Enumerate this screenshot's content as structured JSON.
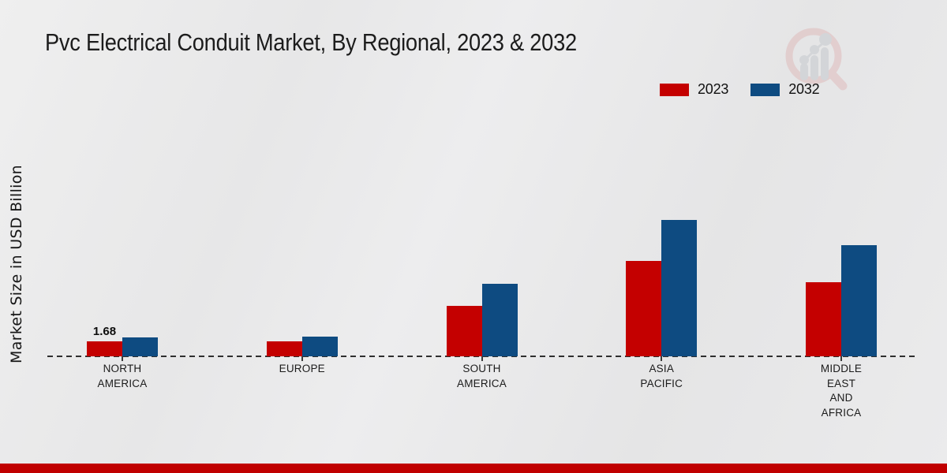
{
  "page": {
    "background_base": "#e9e9ea",
    "bottom_strip_color": "#c00000",
    "baseline_style": "dashed"
  },
  "header": {
    "title": "Pvc Electrical Conduit Market, By Regional, 2023 & 2032"
  },
  "y_axis": {
    "label": "Market Size in USD Billion"
  },
  "legend": {
    "position": "top-right",
    "items": [
      {
        "label": "2023",
        "color": "#c40000"
      },
      {
        "label": "2032",
        "color": "#0e4b81"
      }
    ]
  },
  "chart_data": {
    "type": "bar",
    "title": "Pvc Electrical Conduit Market, By Regional, 2023 & 2032",
    "xlabel": "",
    "ylabel": "Market Size in USD Billion",
    "categories": [
      "NORTH AMERICA",
      "EUROPE",
      "SOUTH AMERICA",
      "ASIA PACIFIC",
      "MIDDLE EAST AND AFRICA"
    ],
    "category_label_lines": [
      [
        "NORTH",
        "AMERICA"
      ],
      [
        "EUROPE"
      ],
      [
        "SOUTH",
        "AMERICA"
      ],
      [
        "ASIA",
        "PACIFIC"
      ],
      [
        "MIDDLE",
        "EAST",
        "AND",
        "AFRICA"
      ]
    ],
    "series": [
      {
        "name": "2023",
        "color": "#c40000",
        "values": [
          1.68,
          1.7,
          5.66,
          10.7,
          8.31
        ]
      },
      {
        "name": "2032",
        "color": "#0e4b81",
        "values": [
          2.12,
          2.21,
          8.13,
          15.3,
          12.47
        ]
      }
    ],
    "value_labels": [
      {
        "series": "2023",
        "category_index": 0,
        "text": "1.68"
      }
    ],
    "ylim": [
      0,
      17
    ],
    "grid": false,
    "axis_line": "dashed-baseline-only",
    "legend_position": "top-right"
  },
  "watermark": {
    "name": "magnifier-bar-chart-logo",
    "ring_color": "#dfbcbc",
    "bars_color": "#c5c8ce"
  }
}
